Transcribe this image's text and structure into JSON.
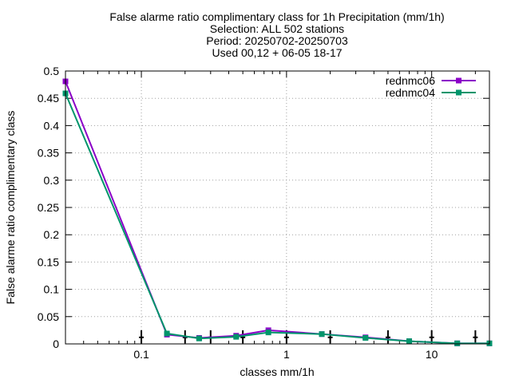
{
  "chart_data": {
    "type": "line",
    "title_lines": [
      "False alarme ratio complimentary class  for 1h Precipitation (mm/1h)",
      "Selection: ALL    502 stations",
      "Period: 20250702-20250703",
      "Used 00,12 + 06-05 18-17"
    ],
    "xlabel": "classes mm/1h",
    "ylabel": "False alarme ratio complimentary class",
    "x_scale": "log",
    "xlim": [
      0.03,
      25
    ],
    "ylim": [
      0,
      0.5
    ],
    "x_ticks": [
      0.1,
      1,
      10
    ],
    "x_tick_labels": [
      "0.1",
      "1",
      "10"
    ],
    "y_ticks": [
      0,
      0.05,
      0.1,
      0.15,
      0.2,
      0.25,
      0.3,
      0.35,
      0.4,
      0.45,
      0.5
    ],
    "y_tick_labels": [
      "0",
      "0.05",
      "0.1",
      "0.15",
      "0.2",
      "0.25",
      "0.3",
      "0.35",
      "0.4",
      "0.45",
      "0.5"
    ],
    "grid": true,
    "legend_position": "top-right",
    "x": [
      0.03,
      0.15,
      0.25,
      0.45,
      0.75,
      1.75,
      3.5,
      7,
      15,
      25
    ],
    "series": [
      {
        "name": "rednmc06",
        "color": "#8b00c8",
        "marker": "square",
        "values": [
          0.481,
          0.017,
          0.011,
          0.015,
          0.025,
          0.018,
          0.012,
          0.005,
          0.001,
          0.001
        ]
      },
      {
        "name": "rednmc04",
        "color": "#00956b",
        "marker": "square",
        "values": [
          0.459,
          0.019,
          0.01,
          0.013,
          0.021,
          0.018,
          0.011,
          0.005,
          0.001,
          0.001
        ]
      }
    ],
    "error_bars": {
      "color": "#000000",
      "x": [
        0.1,
        0.2,
        0.3,
        0.5,
        1,
        2,
        5,
        10,
        20
      ],
      "center": [
        0.012,
        0.012,
        0.012,
        0.012,
        0.012,
        0.012,
        0.012,
        0.012,
        0.012
      ],
      "low": [
        0.001,
        0.001,
        0.001,
        0.001,
        0.001,
        0.001,
        0.001,
        0.001,
        0.001
      ],
      "high": [
        0.025,
        0.025,
        0.025,
        0.025,
        0.025,
        0.025,
        0.025,
        0.025,
        0.025
      ]
    }
  }
}
